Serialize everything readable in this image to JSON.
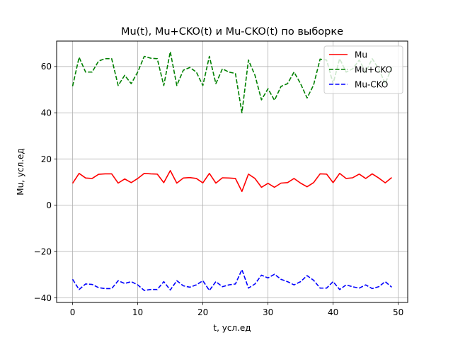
{
  "chart_data": {
    "type": "line",
    "title": "Mu(t),  Mu+CKO(t) и Mu-CKO(t) по выборке",
    "xlabel": "t, усл.ед",
    "ylabel": "Mu, усл.ед",
    "xlim": [
      -2.45,
      51.45
    ],
    "ylim": [
      -42,
      71
    ],
    "xticks": [
      0,
      10,
      20,
      30,
      40,
      50
    ],
    "yticks": [
      -40,
      -20,
      0,
      20,
      40,
      60
    ],
    "xtick_labels": [
      "0",
      "10",
      "20",
      "30",
      "40",
      "50"
    ],
    "ytick_labels": [
      "−40",
      "−20",
      "0",
      "20",
      "40",
      "60"
    ],
    "grid": true,
    "legend_position": "top-right",
    "x": [
      0,
      1,
      2,
      3,
      4,
      5,
      6,
      7,
      8,
      9,
      10,
      11,
      12,
      13,
      14,
      15,
      16,
      17,
      18,
      19,
      20,
      21,
      22,
      23,
      24,
      25,
      26,
      27,
      28,
      29,
      30,
      31,
      32,
      33,
      34,
      35,
      36,
      37,
      38,
      39,
      40,
      41,
      42,
      43,
      44,
      45,
      46,
      47,
      48,
      49
    ],
    "series": [
      {
        "name": "Mu",
        "color": "#ff0000",
        "dash": "solid",
        "values": [
          9.5,
          13.8,
          11.8,
          11.6,
          13.4,
          13.6,
          13.6,
          9.6,
          11.4,
          9.8,
          11.6,
          13.8,
          13.6,
          13.5,
          9.8,
          15.0,
          9.6,
          11.8,
          12.0,
          11.6,
          9.7,
          13.8,
          9.6,
          11.9,
          11.8,
          11.6,
          6.0,
          13.5,
          11.6,
          7.8,
          9.5,
          7.8,
          9.6,
          9.8,
          11.6,
          9.6,
          8.0,
          9.8,
          13.6,
          13.5,
          9.8,
          13.8,
          11.6,
          11.9,
          13.5,
          11.6,
          13.6,
          11.8,
          9.7,
          12.0
        ]
      },
      {
        "name": "Mu+CKO",
        "color": "#008000",
        "dash": "dashed",
        "values": [
          51.5,
          64.0,
          57.6,
          57.6,
          62.4,
          63.4,
          63.4,
          51.8,
          56.2,
          52.6,
          57.6,
          64.4,
          63.6,
          63.4,
          51.8,
          66.4,
          51.8,
          58.4,
          59.6,
          57.6,
          51.8,
          64.4,
          52.6,
          59.0,
          57.6,
          57.0,
          40.0,
          62.8,
          56.2,
          45.6,
          50.4,
          45.4,
          51.4,
          52.6,
          57.6,
          52.6,
          46.4,
          52.0,
          63.2,
          62.8,
          52.6,
          63.4,
          57.6,
          59.0,
          62.8,
          57.6,
          63.4,
          59.0,
          52.6,
          59.6
        ]
      },
      {
        "name": "Mu-CKO",
        "color": "#0000ff",
        "dash": "dashed",
        "values": [
          -32.0,
          -36.4,
          -34.0,
          -34.2,
          -35.6,
          -36.0,
          -36.0,
          -32.6,
          -33.8,
          -33.0,
          -34.4,
          -36.8,
          -36.4,
          -36.4,
          -33.0,
          -36.6,
          -32.6,
          -34.8,
          -35.4,
          -34.4,
          -32.6,
          -36.8,
          -33.0,
          -35.2,
          -34.4,
          -34.0,
          -27.8,
          -35.8,
          -34.0,
          -30.2,
          -31.4,
          -29.8,
          -32.0,
          -33.0,
          -34.4,
          -33.0,
          -30.4,
          -32.4,
          -35.8,
          -35.8,
          -33.0,
          -36.4,
          -34.4,
          -35.2,
          -35.8,
          -34.4,
          -36.0,
          -35.2,
          -33.0,
          -35.4
        ]
      }
    ]
  }
}
